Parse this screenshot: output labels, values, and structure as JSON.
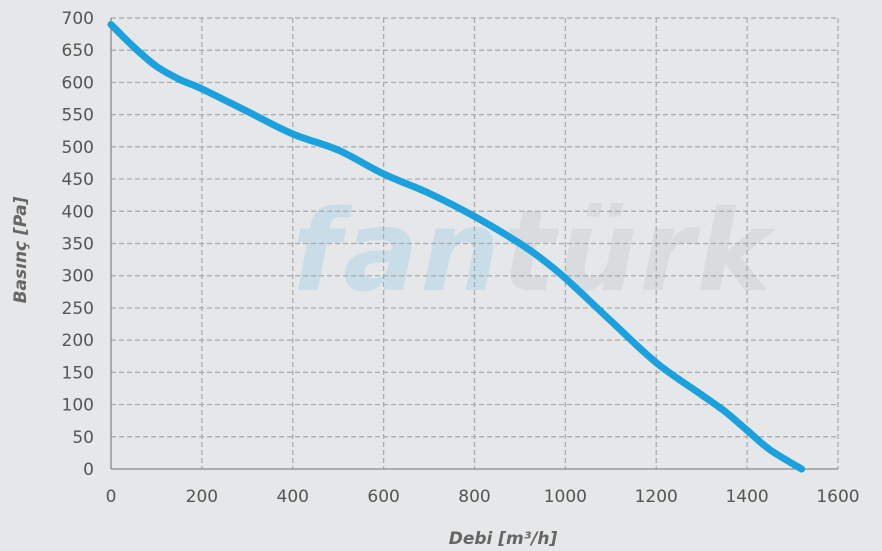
{
  "watermark": {
    "part1": "fan",
    "part2": "türk",
    "color1": "#c9dde8",
    "color2": "#d9dcdf"
  },
  "chart_data": {
    "type": "line",
    "title": "",
    "xlabel": "Debi [m³/h]",
    "ylabel": "Basınç [Pa]",
    "xlim": [
      0,
      1600
    ],
    "ylim": [
      0,
      700
    ],
    "xticks": [
      0,
      200,
      400,
      600,
      800,
      1000,
      1200,
      1400,
      1600
    ],
    "yticks": [
      0,
      50,
      100,
      150,
      200,
      250,
      300,
      350,
      400,
      450,
      500,
      550,
      600,
      650,
      700
    ],
    "grid": true,
    "legend": "none",
    "line_color": "#1ba1dd",
    "series": [
      {
        "x": [
          0,
          50,
          100,
          150,
          200,
          300,
          400,
          500,
          600,
          700,
          800,
          900,
          950,
          1000,
          1100,
          1200,
          1300,
          1350,
          1400,
          1450,
          1520
        ],
        "y": [
          690,
          655,
          625,
          605,
          590,
          555,
          520,
          495,
          458,
          428,
          392,
          350,
          325,
          296,
          230,
          165,
          115,
          90,
          60,
          30,
          0
        ]
      }
    ]
  }
}
